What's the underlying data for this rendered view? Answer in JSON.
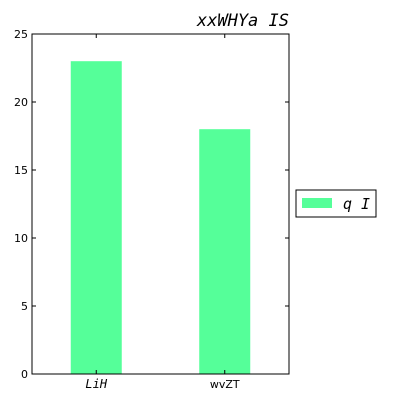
{
  "chart_data": {
    "type": "bar",
    "title": "xxWHYa IS",
    "xlabel": "",
    "ylabel": "",
    "categories": [
      "LiH",
      "wvZT"
    ],
    "series": [
      {
        "name": "q I",
        "values": [
          23,
          18
        ],
        "color": "#55ff99"
      }
    ],
    "ylim": [
      0,
      25
    ],
    "yticks": [
      0,
      5,
      10,
      15,
      20,
      25
    ],
    "grid": false,
    "legend_position": "right"
  }
}
